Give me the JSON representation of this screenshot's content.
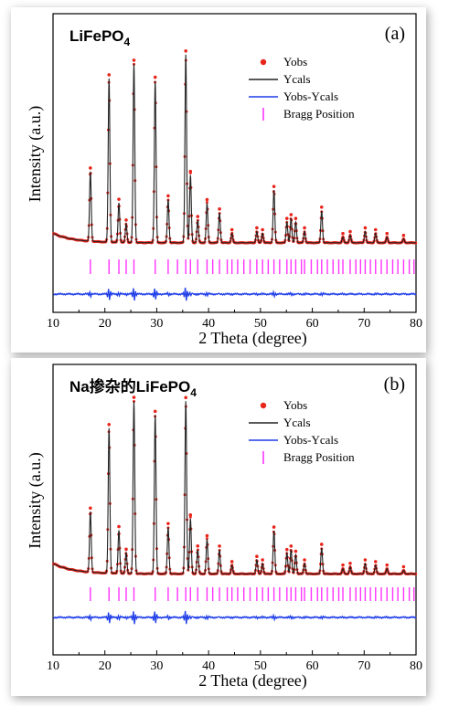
{
  "chart_data": [
    {
      "type": "scatter",
      "panel_label": "(a)",
      "sample_label": "LiFePO",
      "sample_subscript": "4",
      "xlabel": "2 Theta (degree)",
      "ylabel": "Intensity (a.u.)",
      "xlim": [
        10,
        80
      ],
      "xticks": [
        10,
        20,
        30,
        40,
        50,
        60,
        70,
        80
      ],
      "legend": [
        {
          "name": "Yobs",
          "marker": "dot",
          "color": "#e8251c"
        },
        {
          "name": "Ycals",
          "marker": "line",
          "color": "#222222"
        },
        {
          "name": "Yobs-Ycals",
          "marker": "line",
          "color": "#1f3ee8"
        },
        {
          "name": "Bragg Position",
          "marker": "tick",
          "color": "#ff33ff"
        }
      ],
      "legend_placement": "top-right",
      "peaks": [
        {
          "x": 17.2,
          "y": 0.37
        },
        {
          "x": 20.8,
          "y": 0.87
        },
        {
          "x": 22.7,
          "y": 0.21
        },
        {
          "x": 24.1,
          "y": 0.1
        },
        {
          "x": 25.6,
          "y": 0.95
        },
        {
          "x": 29.7,
          "y": 0.86
        },
        {
          "x": 32.2,
          "y": 0.23
        },
        {
          "x": 35.6,
          "y": 1.0
        },
        {
          "x": 36.5,
          "y": 0.36
        },
        {
          "x": 37.9,
          "y": 0.12
        },
        {
          "x": 39.7,
          "y": 0.21
        },
        {
          "x": 42.1,
          "y": 0.16
        },
        {
          "x": 44.5,
          "y": 0.05
        },
        {
          "x": 49.3,
          "y": 0.06
        },
        {
          "x": 50.4,
          "y": 0.05
        },
        {
          "x": 52.6,
          "y": 0.28
        },
        {
          "x": 55.1,
          "y": 0.11
        },
        {
          "x": 55.9,
          "y": 0.13
        },
        {
          "x": 56.8,
          "y": 0.11
        },
        {
          "x": 58.5,
          "y": 0.06
        },
        {
          "x": 61.8,
          "y": 0.17
        },
        {
          "x": 65.9,
          "y": 0.03
        },
        {
          "x": 67.3,
          "y": 0.04
        },
        {
          "x": 70.2,
          "y": 0.06
        },
        {
          "x": 72.2,
          "y": 0.05
        },
        {
          "x": 74.4,
          "y": 0.03
        },
        {
          "x": 77.6,
          "y": 0.02
        }
      ],
      "bragg_positions": [
        17.2,
        20.8,
        22.7,
        24.1,
        25.6,
        29.7,
        32.2,
        34.0,
        35.6,
        36.5,
        37.9,
        39.7,
        40.8,
        42.1,
        43.6,
        44.5,
        45.6,
        46.8,
        48.0,
        49.3,
        50.4,
        51.5,
        52.6,
        53.7,
        55.1,
        55.9,
        56.8,
        57.9,
        58.5,
        59.8,
        61.0,
        61.8,
        62.9,
        64.0,
        65.1,
        65.9,
        67.3,
        68.4,
        69.3,
        70.2,
        71.2,
        72.2,
        73.3,
        74.4,
        75.5,
        76.5,
        77.6,
        78.7,
        79.6
      ]
    },
    {
      "type": "scatter",
      "panel_label": "(b)",
      "sample_label": "Na掺杂的LiFePO",
      "sample_subscript": "4",
      "xlabel": "2 Theta (degree)",
      "ylabel": "Intensity (a.u.)",
      "xlim": [
        10,
        80
      ],
      "xticks": [
        10,
        20,
        30,
        40,
        50,
        60,
        70,
        80
      ],
      "legend": [
        {
          "name": "Yobs",
          "marker": "dot",
          "color": "#e8251c"
        },
        {
          "name": "Ycals",
          "marker": "line",
          "color": "#222222"
        },
        {
          "name": "Yobs-Ycals",
          "marker": "line",
          "color": "#1f3ee8"
        },
        {
          "name": "Bragg Position",
          "marker": "tick",
          "color": "#ff33ff"
        }
      ],
      "legend_placement": "top-right",
      "peaks": [
        {
          "x": 17.2,
          "y": 0.35
        },
        {
          "x": 20.8,
          "y": 0.84
        },
        {
          "x": 22.7,
          "y": 0.25
        },
        {
          "x": 24.1,
          "y": 0.12
        },
        {
          "x": 25.6,
          "y": 1.0
        },
        {
          "x": 29.7,
          "y": 0.92
        },
        {
          "x": 32.2,
          "y": 0.27
        },
        {
          "x": 35.6,
          "y": 1.0
        },
        {
          "x": 36.5,
          "y": 0.32
        },
        {
          "x": 37.9,
          "y": 0.14
        },
        {
          "x": 39.7,
          "y": 0.2
        },
        {
          "x": 42.1,
          "y": 0.14
        },
        {
          "x": 44.5,
          "y": 0.05
        },
        {
          "x": 49.3,
          "y": 0.08
        },
        {
          "x": 50.4,
          "y": 0.06
        },
        {
          "x": 52.6,
          "y": 0.25
        },
        {
          "x": 55.1,
          "y": 0.12
        },
        {
          "x": 55.9,
          "y": 0.14
        },
        {
          "x": 56.8,
          "y": 0.11
        },
        {
          "x": 58.5,
          "y": 0.06
        },
        {
          "x": 61.8,
          "y": 0.15
        },
        {
          "x": 65.9,
          "y": 0.03
        },
        {
          "x": 67.3,
          "y": 0.04
        },
        {
          "x": 70.2,
          "y": 0.06
        },
        {
          "x": 72.2,
          "y": 0.05
        },
        {
          "x": 74.4,
          "y": 0.03
        },
        {
          "x": 77.6,
          "y": 0.02
        }
      ],
      "bragg_positions": [
        17.2,
        20.8,
        22.7,
        24.1,
        25.6,
        29.7,
        32.2,
        34.0,
        35.6,
        36.5,
        37.9,
        39.7,
        40.8,
        42.1,
        43.6,
        44.5,
        45.6,
        46.8,
        48.0,
        49.3,
        50.4,
        51.5,
        52.6,
        53.7,
        55.1,
        55.9,
        56.8,
        57.9,
        58.5,
        59.8,
        61.0,
        61.8,
        62.9,
        64.0,
        65.1,
        65.9,
        67.3,
        68.4,
        69.3,
        70.2,
        71.2,
        72.2,
        73.3,
        74.4,
        75.5,
        76.5,
        77.6,
        78.7,
        79.6
      ]
    }
  ]
}
